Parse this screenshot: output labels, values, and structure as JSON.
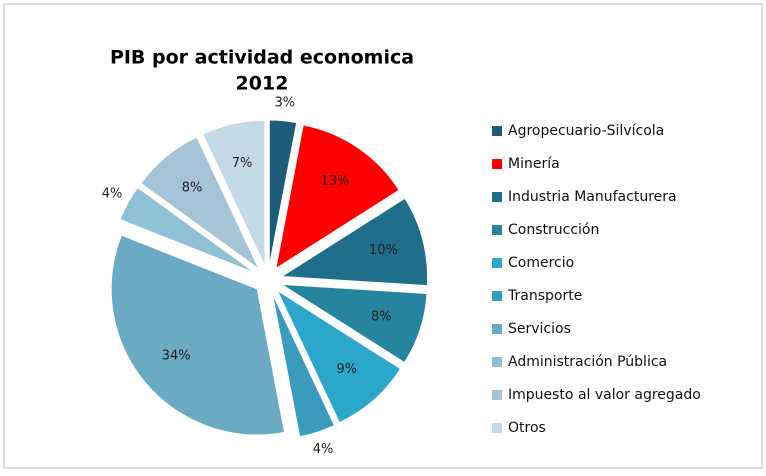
{
  "chart_data": {
    "type": "pie",
    "title": "PIB por actividad economica",
    "subtitle": "2012",
    "categories": [
      "Agropecuario-Silvícola",
      "Minería",
      "Industria Manufacturera",
      "Construcción",
      "Comercio",
      "Transporte",
      "Servicios",
      "Administración Pública",
      "Impuesto al  valor agregado",
      "Otros"
    ],
    "values": [
      3,
      13,
      10,
      8,
      9,
      4,
      34,
      4,
      8,
      7
    ],
    "value_labels": [
      "3%",
      "13%",
      "10%",
      "8%",
      "9%",
      "4%",
      "34%",
      "4%",
      "8%",
      "7%"
    ],
    "colors": [
      "#1d5c78",
      "#ff0000",
      "#1f6e8a",
      "#27849f",
      "#2ca6cb",
      "#3a9cbd",
      "#6aaac2",
      "#8fc1d6",
      "#a5c4d5",
      "#c4dae7"
    ],
    "legend": "right"
  }
}
